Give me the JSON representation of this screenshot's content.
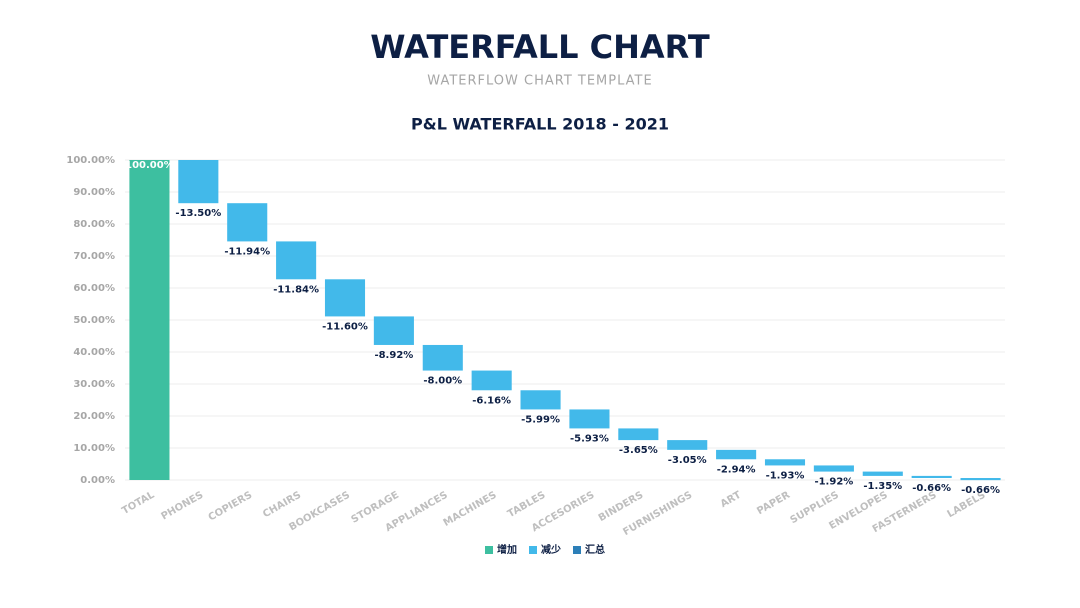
{
  "header": {
    "title": "WATERFALL CHART",
    "subtitle": "WATERFLOW CHART TEMPLATE"
  },
  "chart_data": {
    "type": "waterfall",
    "title": "P&L WATERFALL 2018 - 2021",
    "categories": [
      "TOTAL",
      "PHONES",
      "COPIERS",
      "CHAIRS",
      "BOOKCASES",
      "STORAGE",
      "APPLIANCES",
      "MACHINES",
      "TABLES",
      "ACCESORIES",
      "BINDERS",
      "FURNISHINGS",
      "ART",
      "PAPER",
      "SUPPLIES",
      "ENVELOPES",
      "FASTERNERS",
      "LABELS"
    ],
    "values": [
      100,
      -13.5,
      -11.94,
      -11.84,
      -11.6,
      -8.92,
      -8,
      -6.16,
      -5.99,
      -5.93,
      -3.65,
      -3.05,
      -2.94,
      -1.93,
      -1.92,
      -1.35,
      -0.66,
      -0.66
    ],
    "value_labels": [
      "100.00%",
      "-13.50%",
      "-11.94%",
      "-11.84%",
      "-11.60%",
      "-8.92%",
      "-8.00%",
      "-6.16%",
      "-5.99%",
      "-5.93%",
      "-3.65%",
      "-3.05%",
      "-2.94%",
      "-1.93%",
      "-1.92%",
      "-1.35%",
      "-0.66%",
      "-0.66%"
    ],
    "ylim": [
      0,
      100
    ],
    "yticks": [
      {
        "value": 0,
        "label": "0.00%"
      },
      {
        "value": 10,
        "label": "10.00%"
      },
      {
        "value": 20,
        "label": "20.00%"
      },
      {
        "value": 30,
        "label": "30.00%"
      },
      {
        "value": 40,
        "label": "40.00%"
      },
      {
        "value": 50,
        "label": "50.00%"
      },
      {
        "value": 60,
        "label": "60.00%"
      },
      {
        "value": 70,
        "label": "70.00%"
      },
      {
        "value": 80,
        "label": "80.00%"
      },
      {
        "value": 90,
        "label": "90.00%"
      },
      {
        "value": 100,
        "label": "100.00%"
      }
    ],
    "grid": true,
    "legend_position": "bottom",
    "legend": [
      {
        "name": "增加",
        "color": "#3dbfa0"
      },
      {
        "name": "减少",
        "color": "#42b9ea"
      },
      {
        "name": "汇总",
        "color": "#2c7fb8"
      }
    ]
  }
}
